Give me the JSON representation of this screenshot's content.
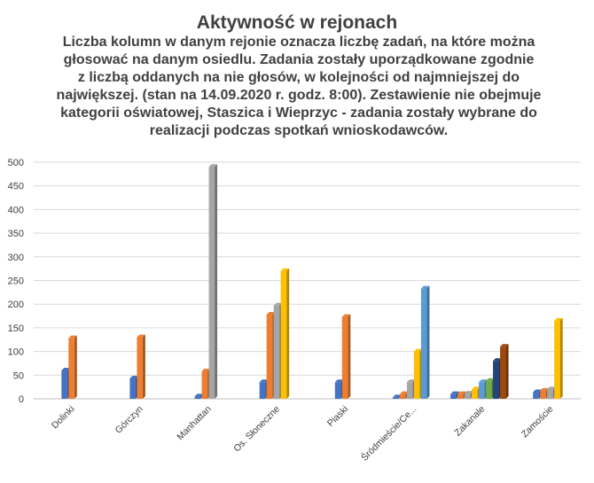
{
  "chart_data": {
    "type": "bar",
    "title": "Aktywność w rejonach",
    "subtitle": "Liczba kolumn w danym rejonie oznacza liczbę zadań, na które można\ngłosować na danym osiedlu. Zadania zostały uporządkowane zgodnie\nz liczbą oddanych na nie głosów, w kolejności od najmniejszej do\nnajwiększej. (stan na 14.09.2020 r. godz. 8:00). Zestawienie nie obejmuje\nkategorii oświatowej, Staszica i Wieprzyc - zadania zostały wybrane do\nrealizacji podczas spotkań wnioskodawców.",
    "xlabel": "",
    "ylabel": "",
    "ylim": [
      0,
      500
    ],
    "yticks": [
      0,
      50,
      100,
      150,
      200,
      250,
      300,
      350,
      400,
      450,
      500
    ],
    "grid": "horizontal",
    "legend": "none",
    "categories": [
      "Dolinki",
      "Górczyn",
      "Manhattan",
      "Os. Słoneczne",
      "Piaski",
      "Śródmieście/Ce...",
      "Zakanale",
      "Zamoście"
    ],
    "series": [
      {
        "color": "#4472C4",
        "values": [
          60,
          43,
          5,
          35,
          35,
          3,
          10,
          14
        ]
      },
      {
        "color": "#ED7D31",
        "values": [
          128,
          130,
          58,
          178,
          173,
          10,
          10,
          17
        ]
      },
      {
        "color": "#A5A5A5",
        "values": [
          null,
          null,
          490,
          197,
          null,
          35,
          11,
          20
        ]
      },
      {
        "color": "#FFC000",
        "values": [
          null,
          null,
          null,
          270,
          null,
          100,
          20,
          165
        ]
      },
      {
        "color": "#5B9BD5",
        "values": [
          null,
          null,
          null,
          null,
          null,
          233,
          35,
          null
        ]
      },
      {
        "color": "#70AD47",
        "values": [
          null,
          null,
          null,
          null,
          null,
          null,
          38,
          null
        ]
      },
      {
        "color": "#264478",
        "values": [
          null,
          null,
          null,
          null,
          null,
          null,
          80,
          null
        ]
      },
      {
        "color": "#9E480E",
        "values": [
          null,
          null,
          null,
          null,
          null,
          null,
          110,
          null
        ]
      }
    ]
  }
}
